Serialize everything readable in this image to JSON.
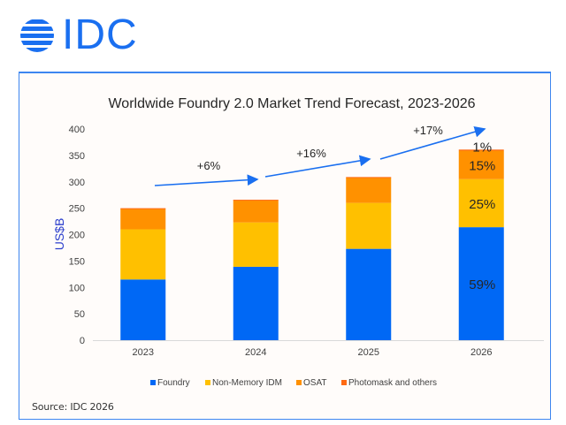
{
  "brand": {
    "logo_text": "IDC",
    "color": "#1a6ff0"
  },
  "source_note": "Source: IDC 2026",
  "chart_data": {
    "type": "bar",
    "stacked": true,
    "title": "Worldwide Foundry 2.0 Market Trend Forecast, 2023-2026",
    "xlabel": "",
    "ylabel": "US$B",
    "ylim": [
      0,
      400
    ],
    "yticks": [
      0,
      50,
      100,
      150,
      200,
      250,
      300,
      350,
      400
    ],
    "grid": false,
    "legend_position": "bottom",
    "categories": [
      "2023",
      "2024",
      "2025",
      "2026"
    ],
    "series": [
      {
        "name": "Foundry",
        "color": "#0068f5",
        "values": [
          115,
          139,
          173,
          214
        ]
      },
      {
        "name": "Non-Memory IDM",
        "color": "#ffc000",
        "values": [
          95,
          84,
          87,
          91
        ]
      },
      {
        "name": "OSAT",
        "color": "#ff9100",
        "values": [
          39,
          42,
          48,
          54
        ]
      },
      {
        "name": "Photomask and others",
        "color": "#ff6a13",
        "values": [
          1,
          1,
          1,
          2
        ]
      }
    ],
    "data_labels": [
      {
        "category": "2026",
        "series": "Foundry",
        "text": "59%"
      },
      {
        "category": "2026",
        "series": "Non-Memory IDM",
        "text": "25%"
      },
      {
        "category": "2026",
        "series": "OSAT",
        "text": "15%"
      },
      {
        "category": "2026",
        "series": "Photomask and others",
        "text": "1%"
      }
    ],
    "growth_annotations": [
      {
        "from": "2023",
        "to": "2024",
        "text": "+6%"
      },
      {
        "from": "2024",
        "to": "2025",
        "text": "+16%"
      },
      {
        "from": "2025",
        "to": "2026",
        "text": "+17%"
      }
    ],
    "arrow_color": "#1a6ff0"
  }
}
